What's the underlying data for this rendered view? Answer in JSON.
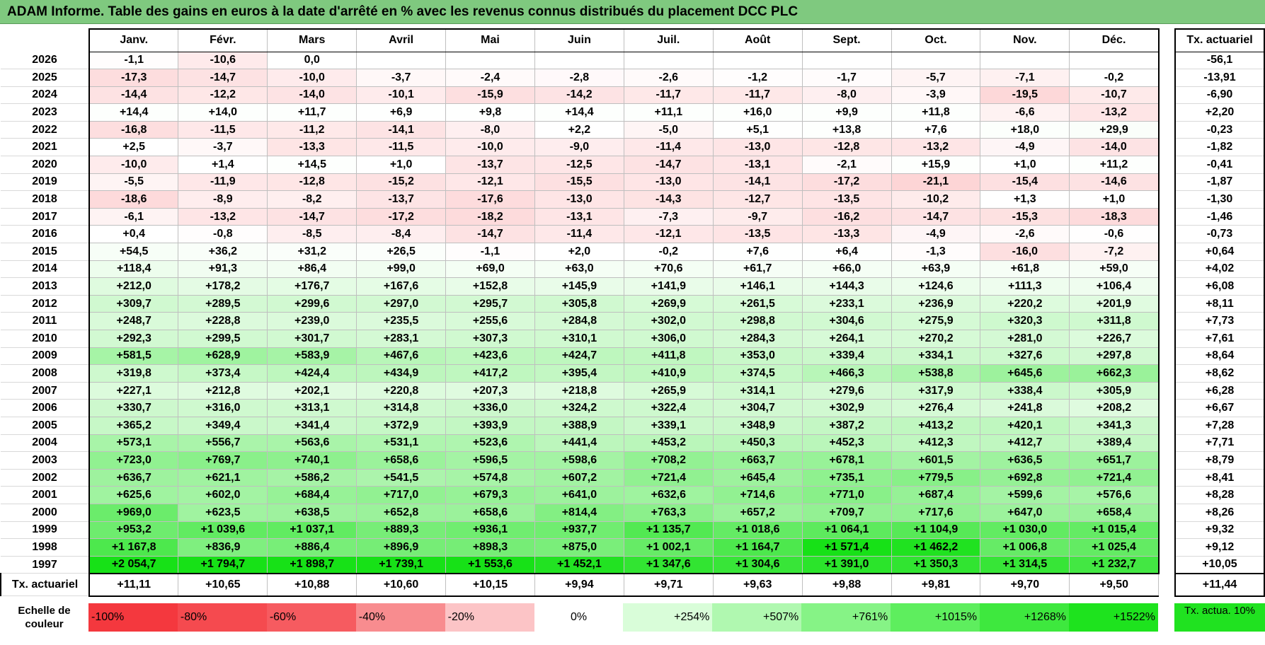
{
  "title": "ADAM Informe. Table des gains en euros à la date d'arrêté en % avec les revenus connus distribués du placement DCC PLC",
  "months": [
    "Janv.",
    "Févr.",
    "Mars",
    "Avril",
    "Mai",
    "Juin",
    "Juil.",
    "Août",
    "Sept.",
    "Oct.",
    "Nov.",
    "Déc."
  ],
  "tx_header": "Tx. actuariel",
  "rows": [
    {
      "year": "2026",
      "values": [
        "-1,1",
        "-10,6",
        "0,0",
        "",
        "",
        "",
        "",
        "",
        "",
        "",
        "",
        ""
      ],
      "tx": "-56,1"
    },
    {
      "year": "2025",
      "values": [
        "-17,3",
        "-14,7",
        "-10,0",
        "-3,7",
        "-2,4",
        "-2,8",
        "-2,6",
        "-1,2",
        "-1,7",
        "-5,7",
        "-7,1",
        "-0,2"
      ],
      "tx": "-13,91"
    },
    {
      "year": "2024",
      "values": [
        "-14,4",
        "-12,2",
        "-14,0",
        "-10,1",
        "-15,9",
        "-14,2",
        "-11,7",
        "-11,7",
        "-8,0",
        "-3,9",
        "-19,5",
        "-10,7"
      ],
      "tx": "-6,90"
    },
    {
      "year": "2023",
      "values": [
        "+14,4",
        "+14,0",
        "+11,7",
        "+6,9",
        "+9,8",
        "+14,4",
        "+11,1",
        "+16,0",
        "+9,9",
        "+11,8",
        "-6,6",
        "-13,2"
      ],
      "tx": "+2,20"
    },
    {
      "year": "2022",
      "values": [
        "-16,8",
        "-11,5",
        "-11,2",
        "-14,1",
        "-8,0",
        "+2,2",
        "-5,0",
        "+5,1",
        "+13,8",
        "+7,6",
        "+18,0",
        "+29,9"
      ],
      "tx": "-0,23"
    },
    {
      "year": "2021",
      "values": [
        "+2,5",
        "-3,7",
        "-13,3",
        "-11,5",
        "-10,0",
        "-9,0",
        "-11,4",
        "-13,0",
        "-12,8",
        "-13,2",
        "-4,9",
        "-14,0"
      ],
      "tx": "-1,82"
    },
    {
      "year": "2020",
      "values": [
        "-10,0",
        "+1,4",
        "+14,5",
        "+1,0",
        "-13,7",
        "-12,5",
        "-14,7",
        "-13,1",
        "-2,1",
        "+15,9",
        "+1,0",
        "+11,2"
      ],
      "tx": "-0,41"
    },
    {
      "year": "2019",
      "values": [
        "-5,5",
        "-11,9",
        "-12,8",
        "-15,2",
        "-12,1",
        "-15,5",
        "-13,0",
        "-14,1",
        "-17,2",
        "-21,1",
        "-15,4",
        "-14,6"
      ],
      "tx": "-1,87"
    },
    {
      "year": "2018",
      "values": [
        "-18,6",
        "-8,9",
        "-8,2",
        "-13,7",
        "-17,6",
        "-13,0",
        "-14,3",
        "-12,7",
        "-13,5",
        "-10,2",
        "+1,3",
        "+1,0"
      ],
      "tx": "-1,30"
    },
    {
      "year": "2017",
      "values": [
        "-6,1",
        "-13,2",
        "-14,7",
        "-17,2",
        "-18,2",
        "-13,1",
        "-7,3",
        "-9,7",
        "-16,2",
        "-14,7",
        "-15,3",
        "-18,3"
      ],
      "tx": "-1,46"
    },
    {
      "year": "2016",
      "values": [
        "+0,4",
        "-0,8",
        "-8,5",
        "-8,4",
        "-14,7",
        "-11,4",
        "-12,1",
        "-13,5",
        "-13,3",
        "-4,9",
        "-2,6",
        "-0,6"
      ],
      "tx": "-0,73"
    },
    {
      "year": "2015",
      "values": [
        "+54,5",
        "+36,2",
        "+31,2",
        "+26,5",
        "-1,1",
        "+2,0",
        "-0,2",
        "+7,6",
        "+6,4",
        "-1,3",
        "-16,0",
        "-7,2"
      ],
      "tx": "+0,64"
    },
    {
      "year": "2014",
      "values": [
        "+118,4",
        "+91,3",
        "+86,4",
        "+99,0",
        "+69,0",
        "+63,0",
        "+70,6",
        "+61,7",
        "+66,0",
        "+63,9",
        "+61,8",
        "+59,0"
      ],
      "tx": "+4,02"
    },
    {
      "year": "2013",
      "values": [
        "+212,0",
        "+178,2",
        "+176,7",
        "+167,6",
        "+152,8",
        "+145,9",
        "+141,9",
        "+146,1",
        "+144,3",
        "+124,6",
        "+111,3",
        "+106,4"
      ],
      "tx": "+6,08"
    },
    {
      "year": "2012",
      "values": [
        "+309,7",
        "+289,5",
        "+299,6",
        "+297,0",
        "+295,7",
        "+305,8",
        "+269,9",
        "+261,5",
        "+233,1",
        "+236,9",
        "+220,2",
        "+201,9"
      ],
      "tx": "+8,11"
    },
    {
      "year": "2011",
      "values": [
        "+248,7",
        "+228,8",
        "+239,0",
        "+235,5",
        "+255,6",
        "+284,8",
        "+302,0",
        "+298,8",
        "+304,6",
        "+275,9",
        "+320,3",
        "+311,8"
      ],
      "tx": "+7,73"
    },
    {
      "year": "2010",
      "values": [
        "+292,3",
        "+299,5",
        "+301,7",
        "+283,1",
        "+307,3",
        "+310,1",
        "+306,0",
        "+284,3",
        "+264,1",
        "+270,2",
        "+281,0",
        "+226,7"
      ],
      "tx": "+7,61"
    },
    {
      "year": "2009",
      "values": [
        "+581,5",
        "+628,9",
        "+583,9",
        "+467,6",
        "+423,6",
        "+424,7",
        "+411,8",
        "+353,0",
        "+339,4",
        "+334,1",
        "+327,6",
        "+297,8"
      ],
      "tx": "+8,64"
    },
    {
      "year": "2008",
      "values": [
        "+319,8",
        "+373,4",
        "+424,4",
        "+434,9",
        "+417,2",
        "+395,4",
        "+410,9",
        "+374,5",
        "+466,3",
        "+538,8",
        "+645,6",
        "+662,3"
      ],
      "tx": "+8,62"
    },
    {
      "year": "2007",
      "values": [
        "+227,1",
        "+212,8",
        "+202,1",
        "+220,8",
        "+207,3",
        "+218,8",
        "+265,9",
        "+314,1",
        "+279,6",
        "+317,9",
        "+338,4",
        "+305,9"
      ],
      "tx": "+6,28"
    },
    {
      "year": "2006",
      "values": [
        "+330,7",
        "+316,0",
        "+313,1",
        "+314,8",
        "+336,0",
        "+324,2",
        "+322,4",
        "+304,7",
        "+302,9",
        "+276,4",
        "+241,8",
        "+208,2"
      ],
      "tx": "+6,67"
    },
    {
      "year": "2005",
      "values": [
        "+365,2",
        "+349,4",
        "+341,4",
        "+372,9",
        "+393,9",
        "+388,9",
        "+339,1",
        "+348,9",
        "+387,2",
        "+413,2",
        "+420,1",
        "+341,3"
      ],
      "tx": "+7,28"
    },
    {
      "year": "2004",
      "values": [
        "+573,1",
        "+556,7",
        "+563,6",
        "+531,1",
        "+523,6",
        "+441,4",
        "+453,2",
        "+450,3",
        "+452,3",
        "+412,3",
        "+412,7",
        "+389,4"
      ],
      "tx": "+7,71"
    },
    {
      "year": "2003",
      "values": [
        "+723,0",
        "+769,7",
        "+740,1",
        "+658,6",
        "+596,5",
        "+598,6",
        "+708,2",
        "+663,7",
        "+678,1",
        "+601,5",
        "+636,5",
        "+651,7"
      ],
      "tx": "+8,79"
    },
    {
      "year": "2002",
      "values": [
        "+636,7",
        "+621,1",
        "+586,2",
        "+541,5",
        "+574,8",
        "+607,2",
        "+721,4",
        "+645,4",
        "+735,1",
        "+779,5",
        "+692,8",
        "+721,4"
      ],
      "tx": "+8,41"
    },
    {
      "year": "2001",
      "values": [
        "+625,6",
        "+602,0",
        "+684,4",
        "+717,0",
        "+679,3",
        "+641,0",
        "+632,6",
        "+714,6",
        "+771,0",
        "+687,4",
        "+599,6",
        "+576,6"
      ],
      "tx": "+8,28"
    },
    {
      "year": "2000",
      "values": [
        "+969,0",
        "+623,5",
        "+638,5",
        "+652,8",
        "+658,6",
        "+814,4",
        "+763,3",
        "+657,2",
        "+709,7",
        "+717,6",
        "+647,0",
        "+658,4"
      ],
      "tx": "+8,26"
    },
    {
      "year": "1999",
      "values": [
        "+953,2",
        "+1 039,6",
        "+1 037,1",
        "+889,3",
        "+936,1",
        "+937,7",
        "+1 135,7",
        "+1 018,6",
        "+1 064,1",
        "+1 104,9",
        "+1 030,0",
        "+1 015,4"
      ],
      "tx": "+9,32"
    },
    {
      "year": "1998",
      "values": [
        "+1 167,8",
        "+836,9",
        "+886,4",
        "+896,9",
        "+898,3",
        "+875,0",
        "+1 002,1",
        "+1 164,7",
        "+1 571,4",
        "+1 462,2",
        "+1 006,8",
        "+1 025,4"
      ],
      "tx": "+9,12"
    },
    {
      "year": "1997",
      "values": [
        "+2 054,7",
        "+1 794,7",
        "+1 898,7",
        "+1 739,1",
        "+1 553,6",
        "+1 452,1",
        "+1 347,6",
        "+1 304,6",
        "+1 391,0",
        "+1 350,3",
        "+1 314,5",
        "+1 232,7"
      ],
      "tx": "+10,05"
    }
  ],
  "footer": {
    "label": "Tx. actuariel",
    "values": [
      "+11,11",
      "+10,65",
      "+10,88",
      "+10,60",
      "+10,15",
      "+9,94",
      "+9,71",
      "+9,63",
      "+9,88",
      "+9,81",
      "+9,70",
      "+9,50"
    ],
    "tx": "+11,44"
  },
  "scale": {
    "label": "Echelle de couleur",
    "swatches": [
      {
        "text": "-100%",
        "color": "#f4383e",
        "align": "left"
      },
      {
        "text": "-80%",
        "color": "#f54a4f",
        "align": "left"
      },
      {
        "text": "-60%",
        "color": "#f65b60",
        "align": "left"
      },
      {
        "text": "-40%",
        "color": "#f88c8f",
        "align": "left"
      },
      {
        "text": "-20%",
        "color": "#fcc4c6",
        "align": "left"
      },
      {
        "text": "0%",
        "color": "#ffffff",
        "align": "center"
      },
      {
        "text": "+254%",
        "color": "#d9fdd9",
        "align": "right"
      },
      {
        "text": "+507%",
        "color": "#b0f8b0",
        "align": "right"
      },
      {
        "text": "+761%",
        "color": "#86f386",
        "align": "right"
      },
      {
        "text": "+1015%",
        "color": "#5eee5e",
        "align": "right"
      },
      {
        "text": "+1268%",
        "color": "#3ee83e",
        "align": "right"
      },
      {
        "text": "+1522%",
        "color": "#1ee31e",
        "align": "right"
      }
    ],
    "tx_label": "Tx. actua. 10%",
    "tx_color": "#20e220"
  },
  "colors": {
    "title_bg": "#7fc97f",
    "max_red": "#f4383e",
    "max_green": "#17e117"
  }
}
